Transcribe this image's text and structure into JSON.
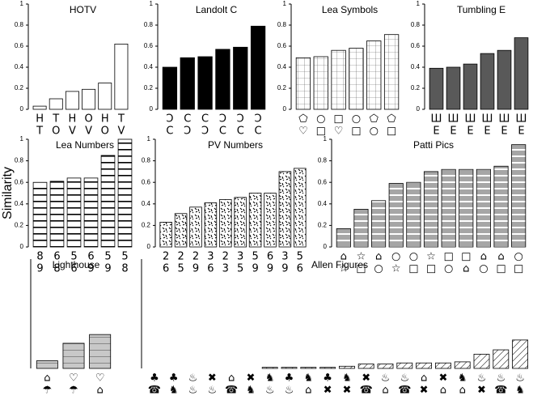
{
  "chart_data": [
    {
      "type": "bar",
      "title": "HOTV",
      "color": "#ffffff",
      "pattern": "none",
      "categories": [
        [
          "H",
          "T"
        ],
        [
          "T",
          "O"
        ],
        [
          "H",
          "V"
        ],
        [
          "O",
          "V"
        ],
        [
          "H",
          "O"
        ],
        [
          "T",
          "V"
        ]
      ],
      "values": [
        0.03,
        0.1,
        0.17,
        0.19,
        0.25,
        0.62
      ],
      "ylim": [
        0,
        1
      ],
      "yticks": [
        0,
        0.2,
        0.4,
        0.6,
        0.8,
        1
      ]
    },
    {
      "type": "bar",
      "title": "Landolt C",
      "color": "#000000",
      "pattern": "none",
      "categories": [
        [
          "Ͻ",
          "C"
        ],
        [
          "C",
          "Ͻ"
        ],
        [
          "C",
          "Ͻ"
        ],
        [
          "Ͻ",
          "C"
        ],
        [
          "Ͻ",
          "C"
        ],
        [
          "Ͻ",
          "C"
        ]
      ],
      "values": [
        0.4,
        0.49,
        0.5,
        0.57,
        0.59,
        0.79
      ],
      "ylim": [
        0,
        1
      ],
      "yticks": [
        0,
        0.2,
        0.4,
        0.6,
        0.8,
        1
      ]
    },
    {
      "type": "bar",
      "title": "Lea Symbols",
      "color": "#ffffff",
      "pattern": "grid",
      "categories": [
        [
          "⬠",
          "♡"
        ],
        [
          "○",
          "□"
        ],
        [
          "□",
          "♡"
        ],
        [
          "○",
          "□"
        ],
        [
          "⬠",
          "○"
        ],
        [
          "⬠",
          "□"
        ]
      ],
      "values": [
        0.49,
        0.5,
        0.56,
        0.58,
        0.65,
        0.71
      ],
      "ylim": [
        0,
        1
      ],
      "yticks": [
        0,
        0.2,
        0.4,
        0.6,
        0.8,
        1
      ]
    },
    {
      "type": "bar",
      "title": "Tumbling E",
      "color": "#595959",
      "pattern": "none",
      "categories": [
        [
          "Ш",
          "E"
        ],
        [
          "Ш",
          "E"
        ],
        [
          "Ш",
          "E"
        ],
        [
          "Ш",
          "E"
        ],
        [
          "Ш",
          "E"
        ],
        [
          "Ш",
          "E"
        ]
      ],
      "values": [
        0.39,
        0.4,
        0.43,
        0.53,
        0.56,
        0.68
      ],
      "ylim": [
        0,
        1
      ],
      "yticks": [
        0,
        0.2,
        0.4,
        0.6,
        0.8,
        1
      ]
    },
    {
      "type": "bar",
      "title": "Lea Numbers",
      "ylabel": "Similarity",
      "color": "#ffffff",
      "pattern": "hstripe",
      "categories": [
        [
          "8",
          "9"
        ],
        [
          "6",
          "8"
        ],
        [
          "5",
          "6"
        ],
        [
          "6",
          "9"
        ],
        [
          "5",
          "9"
        ],
        [
          "5",
          "8"
        ]
      ],
      "values": [
        0.6,
        0.61,
        0.64,
        0.64,
        0.85,
        1.0
      ],
      "ylim": [
        0,
        1
      ],
      "yticks": [
        0,
        0.2,
        0.4,
        0.6,
        0.8,
        1
      ]
    },
    {
      "type": "bar",
      "title": "PV Numbers",
      "color": "#ffffff",
      "pattern": "speckle",
      "categories": [
        [
          "2",
          "6"
        ],
        [
          "2",
          "5"
        ],
        [
          "2",
          "9"
        ],
        [
          "3",
          "6"
        ],
        [
          "2",
          "3"
        ],
        [
          "3",
          "5"
        ],
        [
          "5",
          "9"
        ],
        [
          "6",
          "9"
        ],
        [
          "3",
          "9"
        ],
        [
          "5",
          "6"
        ]
      ],
      "values": [
        0.23,
        0.31,
        0.37,
        0.41,
        0.44,
        0.46,
        0.5,
        0.5,
        0.7,
        0.73
      ],
      "ylim": [
        0,
        1
      ],
      "yticks": [
        0,
        0.2,
        0.4,
        0.6,
        0.8,
        1
      ]
    },
    {
      "type": "bar",
      "title": "Patti Pics",
      "color": "#a6a6a6",
      "pattern": "wstripe",
      "categories": [
        [
          "⌂",
          "☆"
        ],
        [
          "☆",
          "□"
        ],
        [
          "⌂",
          "○"
        ],
        [
          "○",
          "☆"
        ],
        [
          "○",
          "□"
        ],
        [
          "☆",
          "□"
        ],
        [
          "□",
          "○"
        ],
        [
          "□",
          "⌂"
        ],
        [
          "⌂",
          "○"
        ],
        [
          "⌂",
          "□"
        ],
        [
          "○",
          "□"
        ]
      ],
      "values": [
        0.17,
        0.35,
        0.43,
        0.59,
        0.6,
        0.7,
        0.72,
        0.72,
        0.72,
        0.75,
        0.95
      ],
      "ylim": [
        0,
        1
      ],
      "yticks": [
        0,
        0.2,
        0.4,
        0.6,
        0.8,
        1
      ]
    },
    {
      "type": "bar",
      "title": "Lighthouse",
      "color": "#c8c8c8",
      "pattern": "hstripe-light",
      "categories": [
        [
          "⌂",
          "☂"
        ],
        [
          "♡",
          "☂"
        ],
        [
          "♡",
          "⌂"
        ]
      ],
      "values": [
        0.07,
        0.23,
        0.31
      ],
      "ylim": [
        0,
        1
      ]
    },
    {
      "type": "bar",
      "title": "Allen Figures",
      "color": "#ffffff",
      "pattern": "hatch",
      "categories": [
        [
          "♣",
          "☎"
        ],
        [
          "♣",
          "♞"
        ],
        [
          "♨",
          "♨"
        ],
        [
          "✖",
          "♨"
        ],
        [
          "⌂",
          "☎"
        ],
        [
          "✖",
          "♞"
        ],
        [
          "♞",
          "♨"
        ],
        [
          "♣",
          "♨"
        ],
        [
          "♞",
          "⌂"
        ],
        [
          "♣",
          "✖"
        ],
        [
          "♞",
          "✖"
        ],
        [
          "✖",
          "☎"
        ],
        [
          "♨",
          "⌂"
        ],
        [
          "♨",
          "☎"
        ],
        [
          "⌂",
          "✖"
        ],
        [
          "✖",
          "⌂"
        ],
        [
          "♞",
          "⌂"
        ],
        [
          "♨",
          "✖"
        ],
        [
          "♨",
          "☎"
        ],
        [
          "♨",
          "♞"
        ]
      ],
      "values": [
        0,
        0,
        0,
        0,
        0,
        0,
        0.01,
        0.01,
        0.01,
        0.01,
        0.02,
        0.04,
        0.04,
        0.05,
        0.05,
        0.05,
        0.06,
        0.13,
        0.17,
        0.26
      ],
      "ylim": [
        0,
        1
      ]
    }
  ]
}
